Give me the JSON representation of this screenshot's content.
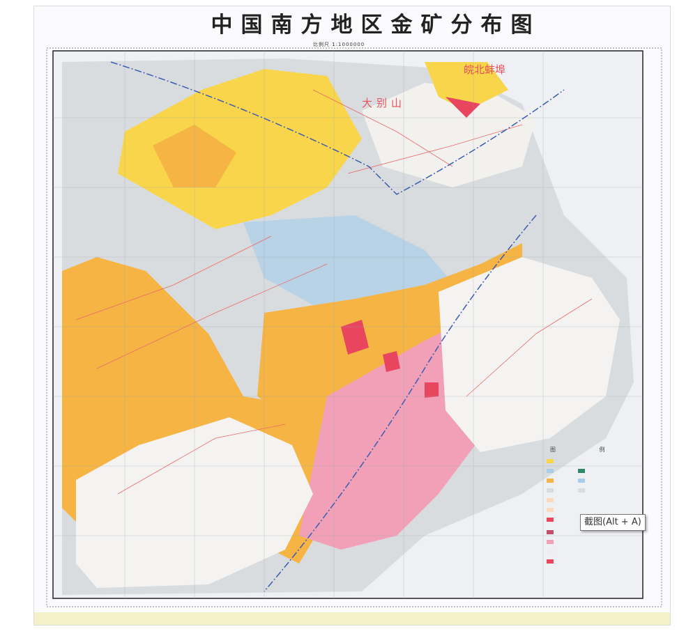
{
  "map": {
    "title": "中国南方地区金矿分布图",
    "scale_label": "比例尺 1:1000000",
    "place_labels": [
      "皖北蚌埠",
      "大别山"
    ],
    "legend_title": "图 例",
    "colors": {
      "orange": "#f6b444",
      "yellow": "#f8d54a",
      "pink": "#f1a0b8",
      "red": "#e8455e",
      "blue": "#a9cde8",
      "grey": "#d9dcdf",
      "fault_line": "#e86a6a",
      "boundary_line": "#3a5cb0"
    }
  },
  "tooltip": {
    "text": "截图(Alt + A)"
  }
}
